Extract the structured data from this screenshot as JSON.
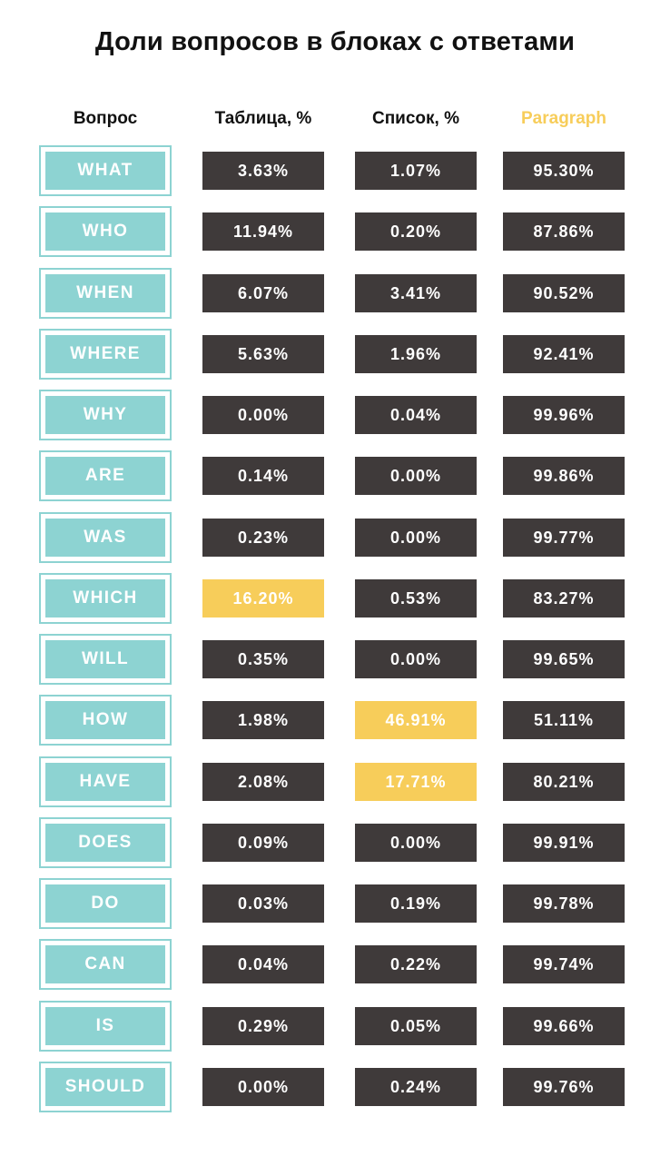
{
  "title": "Доли вопросов в блоках с ответами",
  "headers": {
    "question": "Вопрос",
    "table": "Таблица, %",
    "list": "Список, %",
    "paragraph": "Paragraph"
  },
  "colors": {
    "question_fill": "#8dd3d2",
    "value_fill": "#3f3a3a",
    "highlight_fill": "#f7cd5a",
    "paragraph_header": "#f7cd5a"
  },
  "chart_data": {
    "type": "table",
    "title": "Доли вопросов в блоках с ответами",
    "columns": [
      "Вопрос",
      "Таблица, %",
      "Список, %",
      "Paragraph"
    ],
    "rows": [
      {
        "question": "WHAT",
        "table": "3.63%",
        "list": "1.07%",
        "paragraph": "95.30%",
        "highlight": ""
      },
      {
        "question": "WHO",
        "table": "11.94%",
        "list": "0.20%",
        "paragraph": "87.86%",
        "highlight": ""
      },
      {
        "question": "WHEN",
        "table": "6.07%",
        "list": "3.41%",
        "paragraph": "90.52%",
        "highlight": ""
      },
      {
        "question": "WHERE",
        "table": "5.63%",
        "list": "1.96%",
        "paragraph": "92.41%",
        "highlight": ""
      },
      {
        "question": "WHY",
        "table": "0.00%",
        "list": "0.04%",
        "paragraph": "99.96%",
        "highlight": ""
      },
      {
        "question": "ARE",
        "table": "0.14%",
        "list": "0.00%",
        "paragraph": "99.86%",
        "highlight": ""
      },
      {
        "question": "WAS",
        "table": "0.23%",
        "list": "0.00%",
        "paragraph": "99.77%",
        "highlight": ""
      },
      {
        "question": "WHICH",
        "table": "16.20%",
        "list": "0.53%",
        "paragraph": "83.27%",
        "highlight": "table"
      },
      {
        "question": "WILL",
        "table": "0.35%",
        "list": "0.00%",
        "paragraph": "99.65%",
        "highlight": ""
      },
      {
        "question": "HOW",
        "table": "1.98%",
        "list": "46.91%",
        "paragraph": "51.11%",
        "highlight": "list"
      },
      {
        "question": "HAVE",
        "table": "2.08%",
        "list": "17.71%",
        "paragraph": "80.21%",
        "highlight": "list"
      },
      {
        "question": "DOES",
        "table": "0.09%",
        "list": "0.00%",
        "paragraph": "99.91%",
        "highlight": ""
      },
      {
        "question": "DO",
        "table": "0.03%",
        "list": "0.19%",
        "paragraph": "99.78%",
        "highlight": ""
      },
      {
        "question": "CAN",
        "table": "0.04%",
        "list": "0.22%",
        "paragraph": "99.74%",
        "highlight": ""
      },
      {
        "question": "IS",
        "table": "0.29%",
        "list": "0.05%",
        "paragraph": "99.66%",
        "highlight": ""
      },
      {
        "question": "SHOULD",
        "table": "0.00%",
        "list": "0.24%",
        "paragraph": "99.76%",
        "highlight": ""
      }
    ]
  }
}
